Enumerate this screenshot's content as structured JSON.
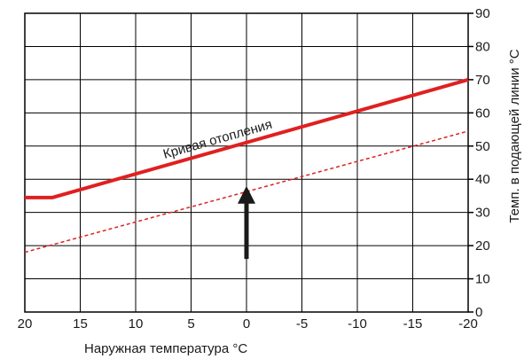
{
  "chart_data": {
    "type": "line",
    "xlabel": "Наружная температура °C",
    "ylabel": "Темп. в подающей линии °C",
    "xlim": [
      20,
      -20
    ],
    "ylim": [
      0,
      90
    ],
    "x_ticks": [
      "20",
      "15",
      "10",
      "5",
      "0",
      "-5",
      "-10",
      "-15",
      "-20"
    ],
    "y_ticks": [
      "0",
      "10",
      "20",
      "30",
      "40",
      "50",
      "60",
      "70",
      "80",
      "90"
    ],
    "grid": true,
    "y_axis_side": "right",
    "series": [
      {
        "name": "Кривая отопления",
        "style": "solid",
        "color": "#e02020",
        "x": [
          20,
          17.5,
          -20
        ],
        "y": [
          34.5,
          34.5,
          70
        ]
      },
      {
        "name": "",
        "style": "dashed",
        "color": "#e02020",
        "x": [
          20,
          -20
        ],
        "y": [
          18,
          54.5
        ]
      }
    ],
    "annotations": [
      {
        "type": "label",
        "text": "Кривая отопления",
        "series": 0
      },
      {
        "type": "arrow",
        "x": 0,
        "y_from": 16,
        "y_to": 38,
        "color": "#1a1a1a"
      }
    ]
  }
}
